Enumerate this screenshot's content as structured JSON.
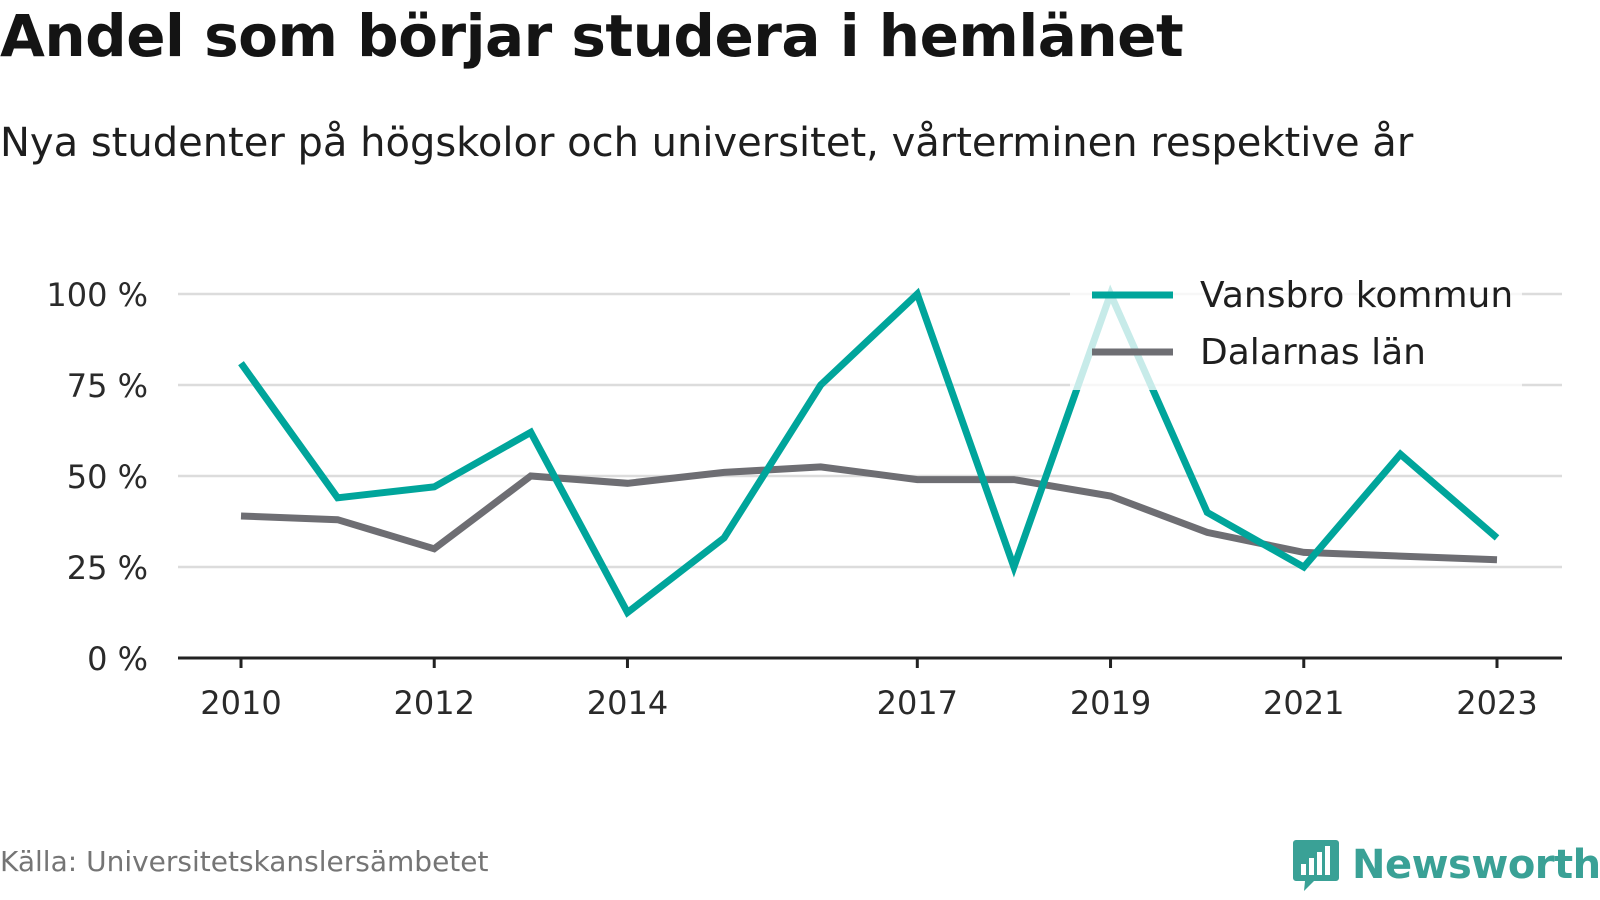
{
  "title": "Andel som börjar studera i hemlänet",
  "subtitle": "Nya studenter på högskolor och universitet, vårterminen respektive år",
  "source": "Källa: Universitetskanslersämbetet",
  "brand": "Newsworthy",
  "colors": {
    "vansbro": "#00a59b",
    "dalarna": "#6e6e73",
    "grid": "#dcdcdc",
    "axis": "#222222",
    "brand": "#3aa196"
  },
  "chart_data": {
    "type": "line",
    "x": [
      2010,
      2011,
      2012,
      2013,
      2014,
      2015,
      2016,
      2017,
      2018,
      2019,
      2020,
      2021,
      2022,
      2023
    ],
    "x_tick_labels": [
      "2010",
      "2012",
      "2014",
      "2017",
      "2019",
      "2021",
      "2023"
    ],
    "y_ticks": [
      0,
      25,
      50,
      75,
      100
    ],
    "y_tick_labels": [
      "0 %",
      "25 %",
      "50 %",
      "75 %",
      "100 %"
    ],
    "ylim": [
      0,
      100
    ],
    "grid": true,
    "legend_position": "top-right",
    "series": [
      {
        "name": "Vansbro kommun",
        "color_key": "vansbro",
        "values": [
          81,
          44,
          47,
          62,
          12.5,
          33,
          75,
          100,
          25,
          100,
          40,
          25,
          56,
          33
        ]
      },
      {
        "name": "Dalarnas län",
        "color_key": "dalarna",
        "values": [
          39,
          38,
          30,
          50,
          48,
          51,
          52.5,
          49,
          49,
          44.5,
          34.5,
          29,
          28,
          27
        ]
      }
    ]
  }
}
